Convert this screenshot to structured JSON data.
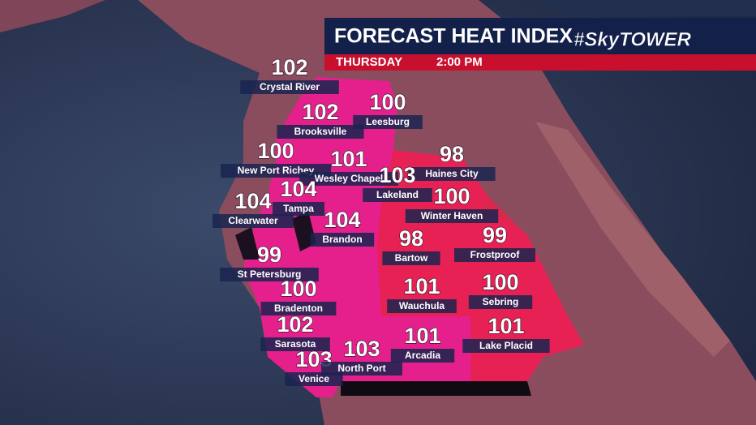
{
  "header": {
    "title": "FORECAST HEAT INDEX",
    "brand": "#SkyTOWER",
    "day": "THURSDAY",
    "time": "2:00 PM"
  },
  "cities": [
    {
      "name": "Crystal River",
      "value": 102
    },
    {
      "name": "Brooksville",
      "value": 102
    },
    {
      "name": "Leesburg",
      "value": 100
    },
    {
      "name": "New Port Richey",
      "value": 100
    },
    {
      "name": "Wesley Chapel",
      "value": 101
    },
    {
      "name": "Haines City",
      "value": 98
    },
    {
      "name": "Lakeland",
      "value": 103
    },
    {
      "name": "Tampa",
      "value": 104
    },
    {
      "name": "Winter Haven",
      "value": 100
    },
    {
      "name": "Clearwater",
      "value": 104
    },
    {
      "name": "Brandon",
      "value": 104
    },
    {
      "name": "Bartow",
      "value": 98
    },
    {
      "name": "Frostproof",
      "value": 99
    },
    {
      "name": "St Petersburg",
      "value": 99
    },
    {
      "name": "Bradenton",
      "value": 100
    },
    {
      "name": "Wauchula",
      "value": 101
    },
    {
      "name": "Sebring",
      "value": 100
    },
    {
      "name": "Sarasota",
      "value": 102
    },
    {
      "name": "Arcadia",
      "value": 101
    },
    {
      "name": "Lake Placid",
      "value": 101
    },
    {
      "name": "Venice",
      "value": 103
    },
    {
      "name": "North Port",
      "value": 103
    }
  ]
}
